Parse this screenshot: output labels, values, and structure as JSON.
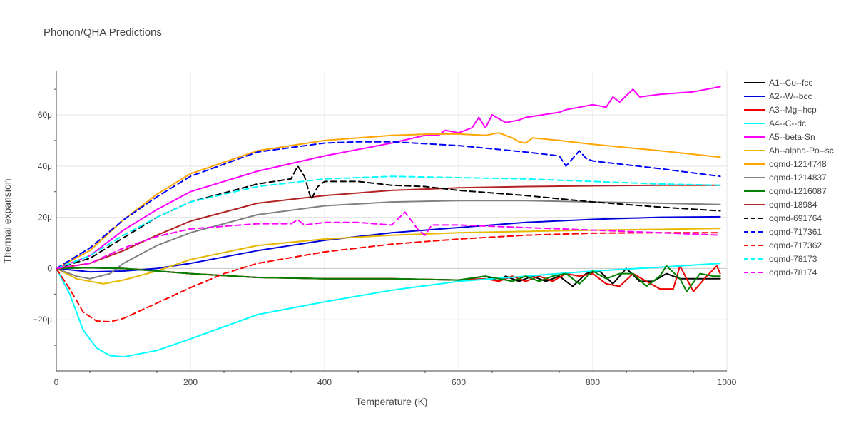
{
  "chart_data": {
    "type": "line",
    "title": "Phonon/QHA Predictions",
    "xlabel": "Temperature (K)",
    "ylabel": "Thermal expansion",
    "xlim": [
      0,
      1000
    ],
    "ylim": [
      -40,
      77
    ],
    "x_ticks": [
      0,
      200,
      400,
      600,
      800,
      1000
    ],
    "y_ticks": [
      -20,
      0,
      20,
      40,
      60
    ],
    "x_tick_labels": [
      "0",
      "200",
      "400",
      "600",
      "800",
      "1000"
    ],
    "y_tick_labels": [
      "−20μ",
      "0",
      "20μ",
      "40μ",
      "60μ"
    ],
    "grid": true,
    "legend_position": "right",
    "series": [
      {
        "name": "A1--Cu--fcc",
        "color": "#000000",
        "dash": "solid",
        "points": [
          [
            0,
            0
          ],
          [
            50,
            0.3
          ],
          [
            100,
            0
          ],
          [
            150,
            -1
          ],
          [
            200,
            -2
          ],
          [
            300,
            -3.5
          ],
          [
            400,
            -4
          ],
          [
            500,
            -4
          ],
          [
            600,
            -4.5
          ],
          [
            640,
            -3
          ],
          [
            660,
            -5
          ],
          [
            670,
            -3
          ],
          [
            690,
            -5
          ],
          [
            710,
            -3
          ],
          [
            730,
            -5
          ],
          [
            750,
            -3
          ],
          [
            770,
            -7
          ],
          [
            790,
            -2
          ],
          [
            810,
            -1
          ],
          [
            830,
            -6
          ],
          [
            850,
            0
          ],
          [
            870,
            -5
          ],
          [
            890,
            -5
          ],
          [
            910,
            -2
          ],
          [
            930,
            -4
          ],
          [
            950,
            -4
          ],
          [
            970,
            -4
          ],
          [
            990,
            -4
          ]
        ]
      },
      {
        "name": "A2--W--bcc",
        "color": "#0000dd",
        "dash": "solid",
        "points": [
          [
            0,
            0
          ],
          [
            50,
            -1.3
          ],
          [
            100,
            -1
          ],
          [
            150,
            0
          ],
          [
            200,
            2
          ],
          [
            300,
            7
          ],
          [
            400,
            11
          ],
          [
            500,
            14
          ],
          [
            600,
            16
          ],
          [
            700,
            18
          ],
          [
            800,
            19.2
          ],
          [
            900,
            20
          ],
          [
            990,
            20.2
          ]
        ]
      },
      {
        "name": "A3--Mg--hcp",
        "color": "#ee0000",
        "dash": "solid",
        "points": [
          [
            0,
            0
          ],
          [
            50,
            0.3
          ],
          [
            100,
            0
          ],
          [
            150,
            -1
          ],
          [
            200,
            -2
          ],
          [
            300,
            -3.5
          ],
          [
            400,
            -4
          ],
          [
            500,
            -4
          ],
          [
            600,
            -4.5
          ],
          [
            640,
            -4
          ],
          [
            660,
            -5
          ],
          [
            680,
            -3
          ],
          [
            700,
            -5
          ],
          [
            720,
            -3
          ],
          [
            740,
            -5
          ],
          [
            760,
            -2
          ],
          [
            780,
            -3
          ],
          [
            800,
            -2
          ],
          [
            820,
            -6
          ],
          [
            840,
            -7
          ],
          [
            860,
            -2
          ],
          [
            880,
            -5
          ],
          [
            900,
            -8
          ],
          [
            920,
            -8
          ],
          [
            930,
            1
          ],
          [
            950,
            -9
          ],
          [
            970,
            -3
          ],
          [
            985,
            1
          ],
          [
            990,
            -2
          ]
        ]
      },
      {
        "name": "A4--C--dc",
        "color": "#00ffff",
        "dash": "solid",
        "points": [
          [
            0,
            0
          ],
          [
            20,
            -10
          ],
          [
            40,
            -24
          ],
          [
            60,
            -31
          ],
          [
            80,
            -34
          ],
          [
            100,
            -34.5
          ],
          [
            150,
            -32
          ],
          [
            200,
            -27.5
          ],
          [
            300,
            -18
          ],
          [
            400,
            -13
          ],
          [
            500,
            -8.5
          ],
          [
            600,
            -5
          ],
          [
            700,
            -3
          ],
          [
            800,
            -1
          ],
          [
            900,
            0.5
          ],
          [
            990,
            2
          ]
        ]
      },
      {
        "name": "A5--beta-Sn",
        "color": "#ff00ff",
        "dash": "solid",
        "points": [
          [
            0,
            0
          ],
          [
            50,
            5
          ],
          [
            100,
            15
          ],
          [
            150,
            23
          ],
          [
            200,
            30
          ],
          [
            300,
            38
          ],
          [
            400,
            44
          ],
          [
            500,
            49
          ],
          [
            550,
            52
          ],
          [
            570,
            52
          ],
          [
            580,
            54
          ],
          [
            600,
            53
          ],
          [
            620,
            55
          ],
          [
            630,
            59
          ],
          [
            640,
            55
          ],
          [
            650,
            60
          ],
          [
            670,
            57
          ],
          [
            690,
            58
          ],
          [
            700,
            59
          ],
          [
            750,
            61
          ],
          [
            760,
            62
          ],
          [
            780,
            63
          ],
          [
            800,
            64
          ],
          [
            820,
            63
          ],
          [
            830,
            67
          ],
          [
            840,
            65
          ],
          [
            860,
            70
          ],
          [
            870,
            67
          ],
          [
            900,
            68
          ],
          [
            950,
            69
          ],
          [
            990,
            71
          ]
        ]
      },
      {
        "name": "Ah--alpha-Po--sc",
        "color": "#e6b800",
        "dash": "solid",
        "points": [
          [
            0,
            0
          ],
          [
            30,
            -4
          ],
          [
            70,
            -6
          ],
          [
            100,
            -4.5
          ],
          [
            150,
            -1
          ],
          [
            200,
            3.5
          ],
          [
            300,
            9
          ],
          [
            400,
            11.5
          ],
          [
            500,
            13
          ],
          [
            600,
            14
          ],
          [
            700,
            14.5
          ],
          [
            800,
            15
          ],
          [
            900,
            15.3
          ],
          [
            990,
            15.7
          ]
        ]
      },
      {
        "name": "oqmd-1214748",
        "color": "#ffa500",
        "dash": "solid",
        "points": [
          [
            0,
            0
          ],
          [
            50,
            7
          ],
          [
            100,
            19
          ],
          [
            150,
            29
          ],
          [
            200,
            37
          ],
          [
            300,
            46
          ],
          [
            400,
            50
          ],
          [
            500,
            52
          ],
          [
            560,
            52.5
          ],
          [
            600,
            52.5
          ],
          [
            640,
            52
          ],
          [
            660,
            53
          ],
          [
            680,
            51
          ],
          [
            690,
            49.5
          ],
          [
            700,
            49
          ],
          [
            710,
            51
          ],
          [
            750,
            50
          ],
          [
            800,
            48.5
          ],
          [
            900,
            46
          ],
          [
            990,
            43.5
          ]
        ]
      },
      {
        "name": "oqmd-1214837",
        "color": "#808080",
        "dash": "solid",
        "points": [
          [
            0,
            0
          ],
          [
            30,
            -3
          ],
          [
            50,
            -4
          ],
          [
            80,
            -2
          ],
          [
            100,
            2
          ],
          [
            150,
            9
          ],
          [
            200,
            14
          ],
          [
            300,
            21
          ],
          [
            400,
            24.5
          ],
          [
            500,
            26
          ],
          [
            600,
            26.5
          ],
          [
            700,
            26.5
          ],
          [
            800,
            26
          ],
          [
            900,
            25.5
          ],
          [
            990,
            25
          ]
        ]
      },
      {
        "name": "oqmd-1216087",
        "color": "#008000",
        "dash": "solid",
        "points": [
          [
            0,
            0
          ],
          [
            50,
            0.3
          ],
          [
            100,
            0
          ],
          [
            150,
            -1
          ],
          [
            200,
            -2
          ],
          [
            300,
            -3.5
          ],
          [
            400,
            -4
          ],
          [
            500,
            -4
          ],
          [
            600,
            -4.5
          ],
          [
            640,
            -3
          ],
          [
            680,
            -5
          ],
          [
            700,
            -3
          ],
          [
            720,
            -5
          ],
          [
            740,
            -3
          ],
          [
            760,
            -2
          ],
          [
            780,
            -6
          ],
          [
            800,
            -1
          ],
          [
            820,
            -4
          ],
          [
            840,
            -2
          ],
          [
            860,
            -2
          ],
          [
            880,
            -7
          ],
          [
            900,
            -3
          ],
          [
            910,
            1
          ],
          [
            930,
            -4
          ],
          [
            940,
            -9
          ],
          [
            960,
            -2
          ],
          [
            980,
            -3
          ],
          [
            990,
            -3
          ]
        ]
      },
      {
        "name": "oqmd-18984",
        "color": "#b22222",
        "dash": "solid",
        "points": [
          [
            0,
            0
          ],
          [
            50,
            2
          ],
          [
            100,
            7
          ],
          [
            150,
            13
          ],
          [
            200,
            18.5
          ],
          [
            300,
            25.5
          ],
          [
            400,
            28.5
          ],
          [
            500,
            30.5
          ],
          [
            600,
            31.5
          ],
          [
            700,
            32
          ],
          [
            800,
            32.3
          ],
          [
            900,
            32.5
          ],
          [
            990,
            32.5
          ]
        ]
      },
      {
        "name": "oqmd-691764",
        "color": "#000000",
        "dash": "dash",
        "points": [
          [
            0,
            0
          ],
          [
            50,
            4
          ],
          [
            100,
            12
          ],
          [
            150,
            20
          ],
          [
            200,
            26
          ],
          [
            300,
            33
          ],
          [
            350,
            35
          ],
          [
            360,
            40
          ],
          [
            370,
            36
          ],
          [
            380,
            27
          ],
          [
            390,
            32
          ],
          [
            400,
            34
          ],
          [
            450,
            34
          ],
          [
            500,
            32.5
          ],
          [
            550,
            32
          ],
          [
            600,
            30.5
          ],
          [
            700,
            28.5
          ],
          [
            800,
            26
          ],
          [
            900,
            24
          ],
          [
            990,
            22.5
          ]
        ]
      },
      {
        "name": "oqmd-717361",
        "color": "#0000ff",
        "dash": "dash",
        "points": [
          [
            0,
            0
          ],
          [
            50,
            8
          ],
          [
            100,
            19
          ],
          [
            150,
            28
          ],
          [
            200,
            36
          ],
          [
            300,
            45.5
          ],
          [
            400,
            49
          ],
          [
            450,
            49.5
          ],
          [
            500,
            49.5
          ],
          [
            600,
            48
          ],
          [
            700,
            45.5
          ],
          [
            750,
            44
          ],
          [
            760,
            40
          ],
          [
            770,
            43
          ],
          [
            780,
            46
          ],
          [
            790,
            43
          ],
          [
            800,
            42
          ],
          [
            900,
            39
          ],
          [
            990,
            36
          ]
        ]
      },
      {
        "name": "oqmd-717362",
        "color": "#ff0000",
        "dash": "dash",
        "points": [
          [
            0,
            0
          ],
          [
            20,
            -8
          ],
          [
            40,
            -17
          ],
          [
            60,
            -20.5
          ],
          [
            80,
            -20.8
          ],
          [
            100,
            -19.5
          ],
          [
            150,
            -13.5
          ],
          [
            200,
            -7.5
          ],
          [
            250,
            -2
          ],
          [
            300,
            2
          ],
          [
            400,
            6.5
          ],
          [
            500,
            9.5
          ],
          [
            600,
            11.5
          ],
          [
            700,
            13
          ],
          [
            800,
            13.8
          ],
          [
            900,
            14
          ],
          [
            990,
            14
          ]
        ]
      },
      {
        "name": "oqmd-78173",
        "color": "#00ffff",
        "dash": "dash",
        "points": [
          [
            0,
            0
          ],
          [
            50,
            5
          ],
          [
            100,
            13
          ],
          [
            150,
            20
          ],
          [
            200,
            26
          ],
          [
            300,
            32
          ],
          [
            400,
            35
          ],
          [
            500,
            36
          ],
          [
            600,
            35.5
          ],
          [
            700,
            35
          ],
          [
            800,
            34
          ],
          [
            900,
            33
          ],
          [
            990,
            32.5
          ]
        ]
      },
      {
        "name": "oqmd-78174",
        "color": "#ff00ff",
        "dash": "dash",
        "points": [
          [
            0,
            0
          ],
          [
            50,
            2
          ],
          [
            100,
            8
          ],
          [
            150,
            12.5
          ],
          [
            200,
            15.5
          ],
          [
            300,
            17.5
          ],
          [
            350,
            17.5
          ],
          [
            360,
            19
          ],
          [
            370,
            17
          ],
          [
            400,
            18
          ],
          [
            450,
            18
          ],
          [
            500,
            17
          ],
          [
            520,
            22
          ],
          [
            540,
            15
          ],
          [
            550,
            13
          ],
          [
            560,
            17
          ],
          [
            600,
            17
          ],
          [
            700,
            16
          ],
          [
            800,
            15
          ],
          [
            900,
            14
          ],
          [
            990,
            13
          ]
        ]
      }
    ]
  }
}
